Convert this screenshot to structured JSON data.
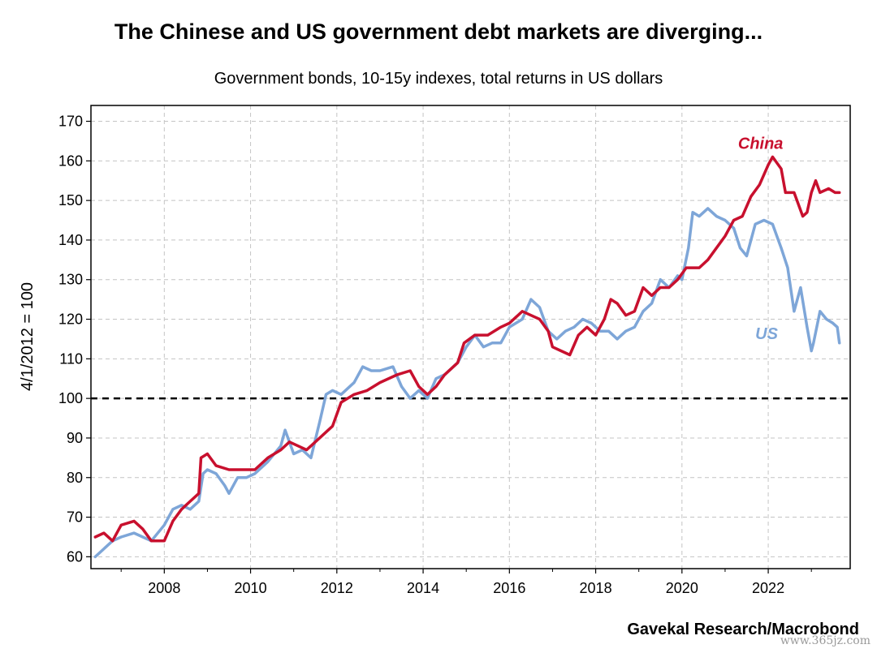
{
  "header": {
    "title": "The Chinese and US government debt markets are diverging...",
    "subtitle": "Government bonds, 10-15y indexes, total returns in US dollars"
  },
  "footer": {
    "source": "Gavekal Research/Macrobond",
    "watermark": "www.365jz.com"
  },
  "chart_data": {
    "type": "line",
    "title": "The Chinese and US government debt markets are diverging...",
    "subtitle": "Government bonds, 10-15y indexes, total returns in US dollars",
    "ylabel": "4/1/2012 = 100",
    "xlabel": "",
    "xlim": [
      2006.3,
      2023.9
    ],
    "ylim": [
      57,
      174
    ],
    "x_ticks": [
      2008,
      2010,
      2012,
      2014,
      2016,
      2018,
      2020,
      2022
    ],
    "y_ticks": [
      60,
      70,
      80,
      90,
      100,
      110,
      120,
      130,
      140,
      150,
      160,
      170
    ],
    "grid": true,
    "reference_line": {
      "y": 100,
      "style": "dashed"
    },
    "colors": {
      "China": "#c8102e",
      "US": "#7ea6d8"
    },
    "series": [
      {
        "name": "China",
        "points": [
          [
            2006.4,
            65
          ],
          [
            2006.6,
            66
          ],
          [
            2006.8,
            64
          ],
          [
            2007.0,
            68
          ],
          [
            2007.3,
            69
          ],
          [
            2007.5,
            67
          ],
          [
            2007.7,
            64
          ],
          [
            2008.0,
            64
          ],
          [
            2008.2,
            69
          ],
          [
            2008.4,
            72
          ],
          [
            2008.6,
            74
          ],
          [
            2008.8,
            76
          ],
          [
            2008.85,
            85
          ],
          [
            2009.0,
            86
          ],
          [
            2009.2,
            83
          ],
          [
            2009.5,
            82
          ],
          [
            2009.8,
            82
          ],
          [
            2010.1,
            82
          ],
          [
            2010.4,
            85
          ],
          [
            2010.7,
            87
          ],
          [
            2010.9,
            89
          ],
          [
            2011.1,
            88
          ],
          [
            2011.3,
            87
          ],
          [
            2011.6,
            90
          ],
          [
            2011.9,
            93
          ],
          [
            2012.1,
            99
          ],
          [
            2012.4,
            101
          ],
          [
            2012.7,
            102
          ],
          [
            2013.0,
            104
          ],
          [
            2013.4,
            106
          ],
          [
            2013.7,
            107
          ],
          [
            2013.9,
            103
          ],
          [
            2014.1,
            101
          ],
          [
            2014.3,
            103
          ],
          [
            2014.5,
            106
          ],
          [
            2014.8,
            109
          ],
          [
            2014.95,
            114
          ],
          [
            2015.2,
            116
          ],
          [
            2015.5,
            116
          ],
          [
            2015.8,
            118
          ],
          [
            2016.0,
            119
          ],
          [
            2016.3,
            122
          ],
          [
            2016.5,
            121
          ],
          [
            2016.7,
            120
          ],
          [
            2016.9,
            117
          ],
          [
            2017.0,
            113
          ],
          [
            2017.2,
            112
          ],
          [
            2017.4,
            111
          ],
          [
            2017.6,
            116
          ],
          [
            2017.8,
            118
          ],
          [
            2018.0,
            116
          ],
          [
            2018.2,
            120
          ],
          [
            2018.35,
            125
          ],
          [
            2018.5,
            124
          ],
          [
            2018.7,
            121
          ],
          [
            2018.9,
            122
          ],
          [
            2019.1,
            128
          ],
          [
            2019.3,
            126
          ],
          [
            2019.5,
            128
          ],
          [
            2019.7,
            128
          ],
          [
            2019.9,
            130
          ],
          [
            2020.1,
            133
          ],
          [
            2020.4,
            133
          ],
          [
            2020.6,
            135
          ],
          [
            2020.8,
            138
          ],
          [
            2021.0,
            141
          ],
          [
            2021.2,
            145
          ],
          [
            2021.4,
            146
          ],
          [
            2021.6,
            151
          ],
          [
            2021.8,
            154
          ],
          [
            2022.0,
            159
          ],
          [
            2022.1,
            161
          ],
          [
            2022.3,
            158
          ],
          [
            2022.4,
            152
          ],
          [
            2022.6,
            152
          ],
          [
            2022.8,
            146
          ],
          [
            2022.9,
            147
          ],
          [
            2023.0,
            152
          ],
          [
            2023.1,
            155
          ],
          [
            2023.2,
            152
          ],
          [
            2023.4,
            153
          ],
          [
            2023.55,
            152
          ],
          [
            2023.65,
            152
          ]
        ]
      },
      {
        "name": "US",
        "points": [
          [
            2006.4,
            60
          ],
          [
            2006.6,
            62
          ],
          [
            2006.8,
            64
          ],
          [
            2007.0,
            65
          ],
          [
            2007.3,
            66
          ],
          [
            2007.5,
            65
          ],
          [
            2007.7,
            64
          ],
          [
            2008.0,
            68
          ],
          [
            2008.2,
            72
          ],
          [
            2008.4,
            73
          ],
          [
            2008.6,
            72
          ],
          [
            2008.8,
            74
          ],
          [
            2008.9,
            81
          ],
          [
            2009.0,
            82
          ],
          [
            2009.2,
            81
          ],
          [
            2009.4,
            78
          ],
          [
            2009.5,
            76
          ],
          [
            2009.7,
            80
          ],
          [
            2009.9,
            80
          ],
          [
            2010.1,
            81
          ],
          [
            2010.4,
            84
          ],
          [
            2010.7,
            88
          ],
          [
            2010.8,
            92
          ],
          [
            2011.0,
            86
          ],
          [
            2011.2,
            87
          ],
          [
            2011.4,
            85
          ],
          [
            2011.6,
            94
          ],
          [
            2011.75,
            101
          ],
          [
            2011.9,
            102
          ],
          [
            2012.1,
            101
          ],
          [
            2012.4,
            104
          ],
          [
            2012.6,
            108
          ],
          [
            2012.8,
            107
          ],
          [
            2013.0,
            107
          ],
          [
            2013.3,
            108
          ],
          [
            2013.5,
            103
          ],
          [
            2013.7,
            100
          ],
          [
            2013.9,
            102
          ],
          [
            2014.1,
            100
          ],
          [
            2014.3,
            105
          ],
          [
            2014.5,
            106
          ],
          [
            2014.8,
            109
          ],
          [
            2015.0,
            113
          ],
          [
            2015.2,
            116
          ],
          [
            2015.4,
            113
          ],
          [
            2015.6,
            114
          ],
          [
            2015.8,
            114
          ],
          [
            2016.0,
            118
          ],
          [
            2016.3,
            120
          ],
          [
            2016.5,
            125
          ],
          [
            2016.7,
            123
          ],
          [
            2016.9,
            117
          ],
          [
            2017.1,
            115
          ],
          [
            2017.3,
            117
          ],
          [
            2017.5,
            118
          ],
          [
            2017.7,
            120
          ],
          [
            2017.9,
            119
          ],
          [
            2018.1,
            117
          ],
          [
            2018.3,
            117
          ],
          [
            2018.5,
            115
          ],
          [
            2018.7,
            117
          ],
          [
            2018.9,
            118
          ],
          [
            2019.1,
            122
          ],
          [
            2019.3,
            124
          ],
          [
            2019.5,
            130
          ],
          [
            2019.7,
            128
          ],
          [
            2019.9,
            131
          ],
          [
            2020.0,
            130
          ],
          [
            2020.15,
            138
          ],
          [
            2020.25,
            147
          ],
          [
            2020.4,
            146
          ],
          [
            2020.6,
            148
          ],
          [
            2020.8,
            146
          ],
          [
            2021.0,
            145
          ],
          [
            2021.2,
            143
          ],
          [
            2021.35,
            138
          ],
          [
            2021.5,
            136
          ],
          [
            2021.7,
            144
          ],
          [
            2021.9,
            145
          ],
          [
            2022.1,
            144
          ],
          [
            2022.3,
            138
          ],
          [
            2022.45,
            133
          ],
          [
            2022.6,
            122
          ],
          [
            2022.75,
            128
          ],
          [
            2022.9,
            118
          ],
          [
            2023.0,
            112
          ],
          [
            2023.05,
            114
          ],
          [
            2023.2,
            122
          ],
          [
            2023.35,
            120
          ],
          [
            2023.5,
            119
          ],
          [
            2023.6,
            118
          ],
          [
            2023.65,
            114
          ]
        ]
      }
    ],
    "annotations": [
      {
        "text": "China",
        "x": 2021.3,
        "y": 163
      },
      {
        "text": "US",
        "x": 2021.7,
        "y": 115
      }
    ]
  }
}
